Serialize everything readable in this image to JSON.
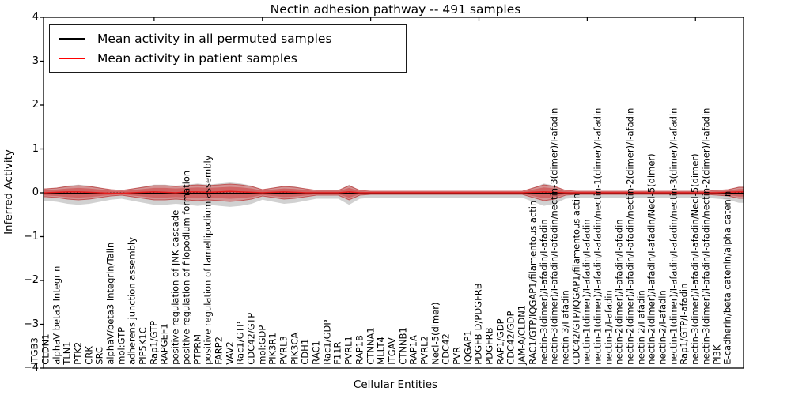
{
  "title": "Nectin adhesion pathway -- 491 samples",
  "xlabel": "Cellular Entities",
  "ylabel": "Inferred Activity",
  "legend": {
    "items": [
      {
        "label": "Mean activity in all permuted samples",
        "color": "#000000"
      },
      {
        "label": "Mean activity in patient samples",
        "color": "#ff0000"
      }
    ]
  },
  "y_tick_labels": [
    "4",
    "3",
    "2",
    "1",
    "0",
    "−1",
    "−2",
    "−3",
    "−4"
  ],
  "chart_data": {
    "type": "violin-band",
    "title": "Nectin adhesion pathway -- 491 samples",
    "xlabel": "Cellular Entities",
    "ylabel": "Inferred Activity",
    "ylim": [
      -4,
      4
    ],
    "grid": false,
    "legend_position": "upper left",
    "categories": [
      "ITGB3",
      "CLDN1",
      "alphaV beta3 Integrin",
      "TLN1",
      "PTK2",
      "CRK",
      "SRC",
      "alphaV/beta3 Integrin/Talin",
      "mol:GTP",
      "adherens junction assembly",
      "PIP5K1C",
      "Rap1/GTP",
      "RAPGEF1",
      "positive regulation of JNK cascade",
      "positive regulation of filopodium formation",
      "PTPRM",
      "positive regulation of lamellipodium assembly",
      "FARP2",
      "VAV2",
      "Rac1/GTP",
      "CDC42/GTP",
      "mol:GDP",
      "PIK3R1",
      "PVRL3",
      "PIK3CA",
      "CDH1",
      "RAC1",
      "Rac1/GDP",
      "F11R",
      "PVRL1",
      "RAP1B",
      "CTNNA1",
      "MLLT4",
      "ITGAV",
      "CTNNB1",
      "RAP1A",
      "PVRL2",
      "Necl-5(dimer)",
      "CDC42",
      "PVR",
      "IQGAP1",
      "PDGFB-D/PDGFRB",
      "PDGFRB",
      "RAP1/GDP",
      "CDC42/GDP",
      "JAM-A/CLDN1",
      "RAC1/GTP/IQGAP1/filamentous actin",
      "nectin-3(dimer)/I-afadin/I-afadin",
      "nectin-3(dimer)/I-afadin/I-afadin/nectin-3(dimer)/I-afadin",
      "nectin-3/I-afadin",
      "CDC42/GTP/IQGAP1/filamentous actin",
      "nectin-1(dimer)/I-afadin/I-afadin",
      "nectin-1(dimer)/I-afadin/I-afadin/nectin-1(dimer)/I-afadin",
      "nectin-1/I-afadin",
      "nectin-2(dimer)/I-afadin/I-afadin",
      "nectin-2(dimer)/I-afadin/I-afadin/nectin-2(dimer)/I-afadin",
      "nectin-2/I-afadin",
      "nectin-2(dimer)/I-afadin/I-afadin/Necl-5(dimer)",
      "nectin-2/I-afadin",
      "nectin-1(dimer)/I-afadin/I-afadin/nectin-3(dimer)/I-afadin",
      "Rap1/GTP/I-afadin",
      "nectin-3(dimer)/I-afadin/I-afadin/Necl-5(dimer)",
      "nectin-3(dimer)/I-afadin/I-afadin/nectin-2(dimer)/I-afadin",
      "PI3K",
      "E-cadherin/beta catenin/alpha catenin"
    ],
    "series": [
      {
        "name": "Mean activity in all permuted samples",
        "line_color": "#000000",
        "band_color": "#8c8c8c",
        "mean": 0,
        "band_halfwidth": [
          0.137,
          0.16,
          0.207,
          0.231,
          0.207,
          0.16,
          0.114,
          0.09,
          0.137,
          0.184,
          0.231,
          0.231,
          0.207,
          0.231,
          0.254,
          0.231,
          0.254,
          0.277,
          0.254,
          0.207,
          0.114,
          0.16,
          0.207,
          0.184,
          0.137,
          0.09,
          0.09,
          0.09,
          0.231,
          0.09,
          0.067,
          0.067,
          0.067,
          0.067,
          0.067,
          0.067,
          0.067,
          0.067,
          0.067,
          0.067,
          0.067,
          0.067,
          0.067,
          0.067,
          0.067,
          0.16,
          0.254,
          0.207,
          0.09,
          0.067,
          0.067,
          0.067,
          0.067,
          0.067,
          0.067,
          0.067,
          0.067,
          0.067,
          0.067,
          0.067,
          0.067,
          0.067,
          0.09,
          0.114,
          0.184
        ]
      },
      {
        "name": "Mean activity in patient samples",
        "line_color": "#ff0000",
        "band_color": "#d93b3b",
        "mean_offsets": [
          0,
          0.01,
          0.02,
          0.02,
          0.01,
          0,
          -0.01,
          -0.01,
          0,
          0.01,
          0.02,
          0.01,
          0,
          0.02,
          0.02,
          0.01,
          0.02,
          0.03,
          0.02,
          0.01,
          0,
          0.01,
          0.02,
          0.01,
          0,
          0,
          0,
          0,
          0.02,
          0,
          0,
          0,
          0,
          0,
          0,
          0,
          0,
          0,
          0,
          0,
          0,
          0,
          0,
          0,
          0,
          0.01,
          0.02,
          0.01,
          0,
          0,
          0,
          0,
          0,
          0,
          0,
          0,
          0,
          0,
          0,
          0,
          0,
          0,
          0,
          0.01,
          0.02
        ],
        "band_halfwidth": [
          0.09,
          0.108,
          0.144,
          0.162,
          0.144,
          0.108,
          0.072,
          0.054,
          0.09,
          0.126,
          0.162,
          0.162,
          0.144,
          0.162,
          0.18,
          0.162,
          0.18,
          0.198,
          0.18,
          0.144,
          0.072,
          0.108,
          0.144,
          0.126,
          0.09,
          0.054,
          0.054,
          0.054,
          0.162,
          0.054,
          0.036,
          0.036,
          0.036,
          0.036,
          0.036,
          0.036,
          0.036,
          0.036,
          0.036,
          0.036,
          0.036,
          0.036,
          0.036,
          0.036,
          0.036,
          0.108,
          0.18,
          0.144,
          0.054,
          0.036,
          0.036,
          0.036,
          0.036,
          0.036,
          0.036,
          0.036,
          0.036,
          0.036,
          0.036,
          0.036,
          0.036,
          0.036,
          0.054,
          0.072,
          0.126
        ]
      }
    ]
  }
}
